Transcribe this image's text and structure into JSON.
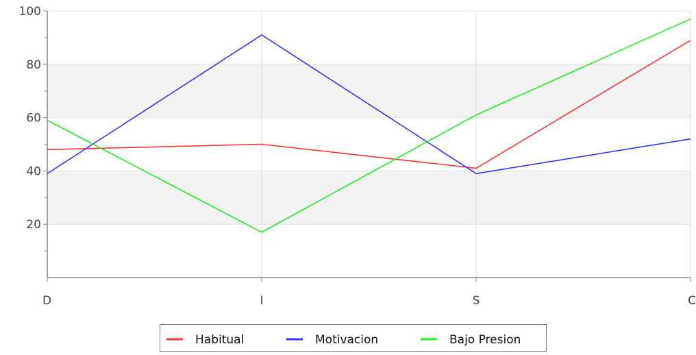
{
  "chart_data": {
    "type": "line",
    "title": "",
    "xlabel": "",
    "ylabel": "",
    "categories": [
      "D",
      "I",
      "S",
      "C"
    ],
    "ylim": [
      0,
      100
    ],
    "yticks": [
      "20",
      "40",
      "60",
      "80",
      "100"
    ],
    "grid": true,
    "legend_position": "bottom",
    "series": [
      {
        "name": "Habitual",
        "color": "#ff3333",
        "values": [
          48,
          50,
          41,
          89
        ]
      },
      {
        "name": "Motivacion",
        "color": "#3333ff",
        "values": [
          39,
          91,
          39,
          52
        ]
      },
      {
        "name": "Bajo Presion",
        "color": "#22ee22",
        "values": [
          59,
          17,
          61,
          97
        ]
      }
    ]
  }
}
